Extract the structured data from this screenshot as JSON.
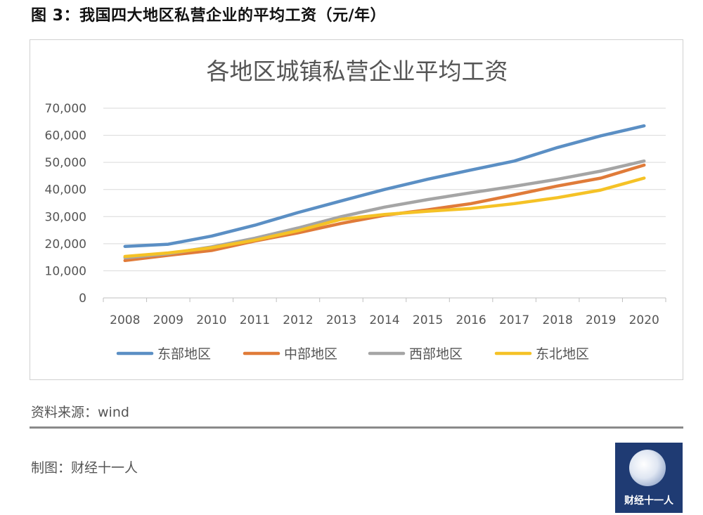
{
  "figure_title": "图 3：我国四大地区私营企业的平均工资（元/年）",
  "source_text": "资料来源：wind",
  "maker_text": "制图：财经十一人",
  "logo_text": "财经十一人",
  "chart_data": {
    "type": "line",
    "title": "各地区城镇私营企业平均工资",
    "categories": [
      "2008",
      "2009",
      "2010",
      "2011",
      "2012",
      "2013",
      "2014",
      "2015",
      "2016",
      "2017",
      "2018",
      "2019",
      "2020"
    ],
    "ylim": [
      0,
      70000
    ],
    "yticks": [
      0,
      10000,
      20000,
      30000,
      40000,
      50000,
      60000,
      70000
    ],
    "ytick_labels": [
      "0",
      "10,000",
      "20,000",
      "30,000",
      "40,000",
      "50,000",
      "60,000",
      "70,000"
    ],
    "grid": true,
    "legend_position": "bottom",
    "series": [
      {
        "name": "东部地区",
        "color": "#5b8fc4",
        "values": [
          19000,
          19800,
          22800,
          26800,
          31500,
          35800,
          40000,
          43800,
          47200,
          50500,
          55500,
          59800,
          63500
        ]
      },
      {
        "name": "中部地区",
        "color": "#e07b39",
        "values": [
          13800,
          15700,
          17500,
          21000,
          24000,
          27500,
          30500,
          32500,
          34800,
          38000,
          41300,
          44200,
          49000
        ]
      },
      {
        "name": "西部地区",
        "color": "#a5a5a5",
        "values": [
          14800,
          16300,
          18800,
          22000,
          25800,
          30000,
          33500,
          36300,
          38800,
          41200,
          43800,
          46800,
          50500
        ]
      },
      {
        "name": "东北地区",
        "color": "#f5c226",
        "values": [
          15300,
          16600,
          18500,
          21300,
          24800,
          29000,
          30800,
          32000,
          33000,
          34800,
          37000,
          39800,
          44200
        ]
      }
    ]
  }
}
